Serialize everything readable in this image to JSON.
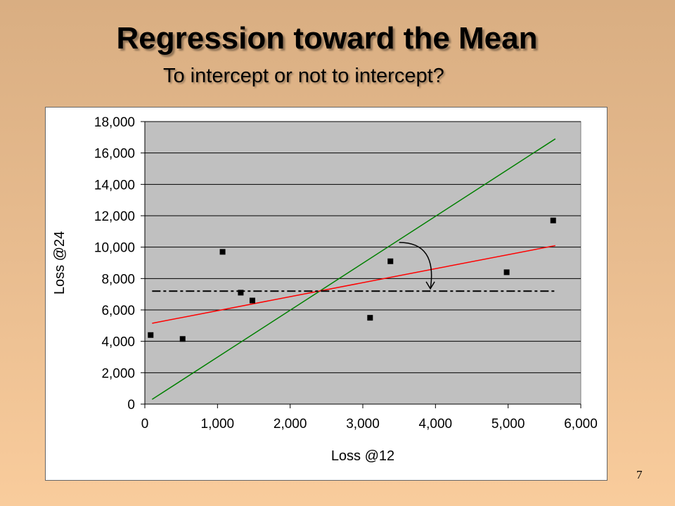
{
  "slide": {
    "title": "Regression toward the Mean",
    "subtitle": "To intercept or not to intercept?",
    "page_number": "7"
  },
  "chart_data": {
    "type": "scatter",
    "xlabel": "Loss @12",
    "ylabel": "Loss @24",
    "xlim": [
      0,
      6000
    ],
    "ylim": [
      0,
      18000
    ],
    "x_ticks": [
      "0",
      "1,000",
      "2,000",
      "3,000",
      "4,000",
      "5,000",
      "6,000"
    ],
    "y_ticks": [
      "0",
      "2,000",
      "4,000",
      "6,000",
      "8,000",
      "10,000",
      "12,000",
      "14,000",
      "16,000",
      "18,000"
    ],
    "grid": "horizontal",
    "legend": "none",
    "plot_background": "#c0c0c0",
    "series": [
      {
        "kind": "points",
        "color": "#000000",
        "x": [
          80,
          520,
          1070,
          1320,
          1480,
          3100,
          3380,
          4980,
          5620
        ],
        "y": [
          4400,
          4150,
          9700,
          7100,
          6600,
          5500,
          9100,
          8400,
          11700
        ]
      },
      {
        "kind": "line",
        "style": "solid",
        "color": "#008000",
        "x": [
          100,
          5650
        ],
        "y": [
          300,
          16900
        ]
      },
      {
        "kind": "line",
        "style": "solid",
        "color": "#ff0000",
        "x": [
          100,
          5650
        ],
        "y": [
          5150,
          10100
        ]
      },
      {
        "kind": "line",
        "style": "dash-dot",
        "color": "#000000",
        "x": [
          100,
          5650
        ],
        "y": [
          7200,
          7200
        ]
      }
    ],
    "annotations": [
      {
        "kind": "curved-arrow",
        "color": "#000000",
        "from": [
          3500,
          10300
        ],
        "to": [
          3930,
          7350
        ]
      }
    ]
  }
}
